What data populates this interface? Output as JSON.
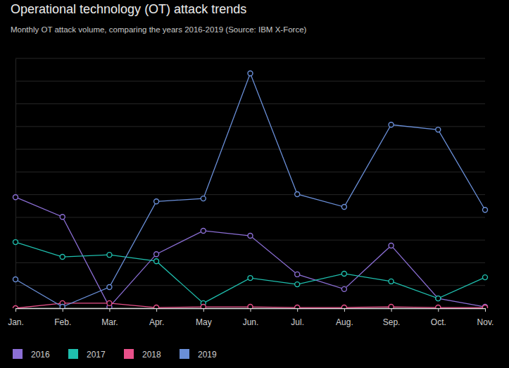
{
  "chart_data": {
    "type": "line",
    "title": "Operational technology (OT) attack trends",
    "subtitle": "Monthly OT attack volume, comparing the years 2016-2019 (Source: IBM X-Force)",
    "categories": [
      "Jan.",
      "Feb.",
      "Mar.",
      "Apr.",
      "May",
      "Jun.",
      "Jul.",
      "Aug.",
      "Sep.",
      "Oct.",
      "Nov."
    ],
    "series": [
      {
        "name": "2016",
        "color": "#8c6fd6",
        "values": [
          48.9,
          40.2,
          0.6,
          23.8,
          34.1,
          31.9,
          14.9,
          8.4,
          27.6,
          4.3,
          0.6
        ]
      },
      {
        "name": "2017",
        "color": "#1fbfae",
        "values": [
          29.1,
          22.6,
          23.5,
          20.7,
          2.2,
          13.3,
          10.5,
          15.2,
          11.8,
          4.3,
          13.6
        ]
      },
      {
        "name": "2018",
        "color": "#e8508a",
        "values": [
          0,
          2.2,
          2.2,
          0.3,
          0.6,
          0.6,
          0.3,
          0.3,
          0.6,
          0.3,
          0.3
        ]
      },
      {
        "name": "2019",
        "color": "#6a8fd8",
        "values": [
          12.7,
          0.6,
          9.3,
          47,
          48.3,
          103.4,
          50.2,
          44.6,
          80.8,
          78.6,
          43.3
        ]
      }
    ],
    "ylim": [
      0,
      110
    ],
    "yticks": [
      0,
      10,
      20,
      30,
      40,
      50,
      60,
      70,
      80,
      90,
      100,
      110
    ],
    "grid": true,
    "tick_labels": "x",
    "legend": "bottom-left",
    "marker": "circle"
  }
}
